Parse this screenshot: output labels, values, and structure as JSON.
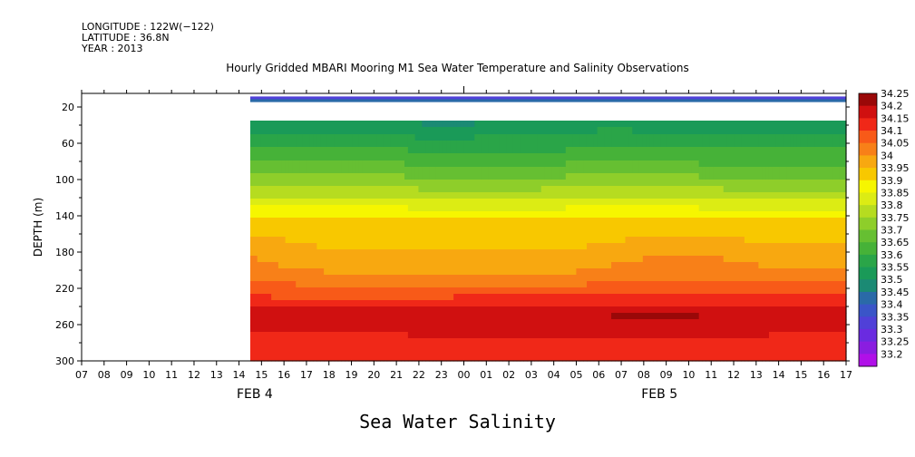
{
  "meta": {
    "longitude": "LONGITUDE : 122W(−122)",
    "latitude": "LATITUDE : 36.8N",
    "year": "YEAR : 2013"
  },
  "chart_data": {
    "type": "heatmap",
    "title": "Hourly Gridded MBARI Mooring M1 Sea Water Temperature and Salinity Observations",
    "bottom_title": "Sea Water Salinity",
    "ylabel": "DEPTH (m)",
    "ylim": [
      300,
      5
    ],
    "y_ticks": [
      20,
      60,
      100,
      140,
      180,
      220,
      260,
      300
    ],
    "x_ticks": [
      "07",
      "08",
      "09",
      "10",
      "11",
      "12",
      "13",
      "14",
      "15",
      "16",
      "17",
      "18",
      "19",
      "20",
      "21",
      "22",
      "23",
      "00",
      "01",
      "02",
      "03",
      "04",
      "05",
      "06",
      "07",
      "08",
      "09",
      "10",
      "11",
      "12",
      "13",
      "14",
      "15",
      "16",
      "17"
    ],
    "x_range_hours": [
      0,
      34
    ],
    "date_labels": [
      {
        "text": "FEB  4",
        "hour": 7.5
      },
      {
        "text": "FEB  5",
        "hour": 25.5
      }
    ],
    "data_start_hour": 7.5,
    "levels": [
      33.2,
      33.25,
      33.3,
      33.35,
      33.4,
      33.45,
      33.5,
      33.55,
      33.6,
      33.65,
      33.7,
      33.75,
      33.8,
      33.85,
      33.9,
      33.95,
      34,
      34.05,
      34.1,
      34.15,
      34.2,
      34.25
    ],
    "level_labels": [
      "33.2",
      "33.25",
      "33.3",
      "33.35",
      "33.4",
      "33.45",
      "33.5",
      "33.55",
      "33.6",
      "33.65",
      "33.7",
      "33.75",
      "33.8",
      "33.85",
      "33.9",
      "33.95",
      "34",
      "34.05",
      "34.1",
      "34.15",
      "34.2",
      "34.25"
    ],
    "colors": [
      "#b010e8",
      "#8a1de0",
      "#6a2be0",
      "#5040d8",
      "#3a55c8",
      "#2a6aa8",
      "#1b8a74",
      "#1a9a58",
      "#2aa548",
      "#46b238",
      "#66bf32",
      "#8ece2a",
      "#b6dc20",
      "#dcec14",
      "#f6f600",
      "#f8c800",
      "#f8a810",
      "#f88018",
      "#f85a18",
      "#f02818",
      "#d01010",
      "#9a0808"
    ],
    "sensors": [
      {
        "depth": 10,
        "value": 33.36
      },
      {
        "depth": 13,
        "value": 33.46
      }
    ],
    "depths": [
      35,
      42,
      50,
      57,
      64,
      71,
      79,
      86,
      93,
      100,
      107,
      114,
      121,
      128,
      135,
      142,
      149,
      156,
      163,
      170,
      177,
      184,
      191,
      198,
      205,
      212,
      219,
      226,
      233,
      240,
      247,
      254,
      261,
      268,
      275,
      282,
      289,
      296,
      300
    ],
    "profile": {
      "hours": [
        7.5,
        9.5,
        11.5,
        13.5,
        15.5,
        17.5,
        19.5,
        21.5,
        23.5,
        25.5,
        27.5,
        29.5,
        31.5,
        33.5,
        34
      ],
      "values": [
        [
          33.56,
          33.55,
          33.56,
          33.56,
          33.54,
          33.54,
          33.54,
          33.55,
          33.57,
          33.56,
          33.56,
          33.55,
          33.55,
          33.56,
          33.56
        ],
        [
          33.58,
          33.57,
          33.58,
          33.58,
          33.55,
          33.56,
          33.56,
          33.57,
          33.59,
          33.58,
          33.58,
          33.57,
          33.57,
          33.58,
          33.58
        ],
        [
          33.61,
          33.6,
          33.6,
          33.61,
          33.58,
          33.59,
          33.59,
          33.6,
          33.62,
          33.61,
          33.61,
          33.6,
          33.6,
          33.61,
          33.61
        ],
        [
          33.63,
          33.62,
          33.62,
          33.63,
          33.6,
          33.61,
          33.61,
          33.62,
          33.64,
          33.63,
          33.63,
          33.62,
          33.62,
          33.63,
          33.63
        ],
        [
          33.65,
          33.64,
          33.64,
          33.65,
          33.63,
          33.64,
          33.63,
          33.64,
          33.66,
          33.65,
          33.65,
          33.64,
          33.64,
          33.65,
          33.65
        ],
        [
          33.67,
          33.66,
          33.67,
          33.67,
          33.65,
          33.66,
          33.66,
          33.66,
          33.68,
          33.67,
          33.67,
          33.66,
          33.66,
          33.66,
          33.66
        ],
        [
          33.7,
          33.69,
          33.69,
          33.7,
          33.67,
          33.68,
          33.68,
          33.69,
          33.7,
          33.69,
          33.69,
          33.68,
          33.68,
          33.68,
          33.68
        ],
        [
          33.72,
          33.71,
          33.72,
          33.72,
          33.7,
          33.71,
          33.7,
          33.71,
          33.72,
          33.72,
          33.71,
          33.71,
          33.71,
          33.7,
          33.7
        ],
        [
          33.75,
          33.74,
          33.74,
          33.75,
          33.72,
          33.73,
          33.73,
          33.74,
          33.75,
          33.74,
          33.74,
          33.73,
          33.73,
          33.72,
          33.72
        ],
        [
          33.77,
          33.76,
          33.77,
          33.77,
          33.75,
          33.76,
          33.76,
          33.76,
          33.77,
          33.77,
          33.76,
          33.76,
          33.76,
          33.75,
          33.75
        ],
        [
          33.8,
          33.79,
          33.79,
          33.8,
          33.78,
          33.79,
          33.78,
          33.79,
          33.8,
          33.79,
          33.79,
          33.78,
          33.78,
          33.78,
          33.78
        ],
        [
          33.83,
          33.82,
          33.82,
          33.83,
          33.81,
          33.81,
          33.81,
          33.82,
          33.83,
          33.82,
          33.82,
          33.81,
          33.81,
          33.81,
          33.81
        ],
        [
          33.86,
          33.85,
          33.85,
          33.86,
          33.84,
          33.84,
          33.84,
          33.85,
          33.86,
          33.85,
          33.85,
          33.84,
          33.84,
          33.84,
          33.84
        ],
        [
          33.89,
          33.88,
          33.88,
          33.89,
          33.87,
          33.88,
          33.87,
          33.88,
          33.89,
          33.88,
          33.88,
          33.87,
          33.87,
          33.87,
          33.87
        ],
        [
          33.93,
          33.92,
          33.92,
          33.93,
          33.91,
          33.92,
          33.91,
          33.92,
          33.93,
          33.92,
          33.92,
          33.91,
          33.91,
          33.91,
          33.91
        ],
        [
          33.97,
          33.96,
          33.97,
          33.97,
          33.96,
          33.96,
          33.96,
          33.97,
          33.97,
          33.97,
          33.97,
          33.96,
          33.96,
          33.96,
          33.96
        ],
        [
          33.98,
          33.98,
          33.98,
          33.98,
          33.98,
          33.98,
          33.98,
          33.98,
          33.98,
          33.98,
          33.98,
          33.98,
          33.98,
          33.98,
          33.98
        ],
        [
          33.99,
          33.98,
          33.98,
          33.98,
          33.98,
          33.98,
          33.98,
          33.98,
          33.98,
          33.98,
          33.98,
          33.98,
          33.98,
          33.98,
          33.98
        ],
        [
          34.01,
          33.99,
          33.99,
          33.99,
          33.99,
          33.99,
          33.99,
          33.99,
          33.99,
          34.0,
          34.01,
          33.99,
          33.99,
          33.99,
          33.99
        ],
        [
          34.03,
          34.0,
          33.99,
          33.99,
          33.99,
          33.99,
          33.99,
          33.99,
          34.0,
          34.02,
          34.03,
          34.01,
          34.0,
          34.0,
          34.0
        ],
        [
          34.04,
          34.01,
          34.0,
          34.0,
          34.0,
          34.0,
          34.0,
          34.0,
          34.01,
          34.04,
          34.04,
          34.03,
          34.01,
          34.01,
          34.01
        ],
        [
          34.05,
          34.02,
          34.0,
          34.0,
          34.0,
          34.0,
          34.0,
          34.0,
          34.03,
          34.05,
          34.05,
          34.04,
          34.02,
          34.02,
          34.02
        ],
        [
          34.06,
          34.03,
          34.01,
          34.01,
          34.01,
          34.01,
          34.01,
          34.01,
          34.04,
          34.06,
          34.06,
          34.05,
          34.03,
          34.03,
          34.03
        ],
        [
          34.07,
          34.05,
          34.03,
          34.02,
          34.02,
          34.02,
          34.02,
          34.03,
          34.06,
          34.07,
          34.07,
          34.06,
          34.05,
          34.05,
          34.05
        ],
        [
          34.08,
          34.07,
          34.06,
          34.06,
          34.06,
          34.06,
          34.06,
          34.06,
          34.07,
          34.08,
          34.08,
          34.07,
          34.07,
          34.07,
          34.07
        ],
        [
          34.1,
          34.09,
          34.08,
          34.08,
          34.08,
          34.08,
          34.08,
          34.08,
          34.09,
          34.1,
          34.1,
          34.09,
          34.09,
          34.09,
          34.09
        ],
        [
          34.12,
          34.11,
          34.11,
          34.11,
          34.11,
          34.11,
          34.11,
          34.11,
          34.12,
          34.12,
          34.12,
          34.12,
          34.11,
          34.11,
          34.11
        ],
        [
          34.14,
          34.13,
          34.13,
          34.13,
          34.13,
          34.14,
          34.14,
          34.14,
          34.15,
          34.15,
          34.15,
          34.15,
          34.14,
          34.14,
          34.14
        ],
        [
          34.17,
          34.16,
          34.16,
          34.16,
          34.16,
          34.17,
          34.17,
          34.18,
          34.18,
          34.18,
          34.18,
          34.18,
          34.17,
          34.17,
          34.17
        ],
        [
          34.2,
          34.19,
          34.19,
          34.19,
          34.19,
          34.2,
          34.2,
          34.21,
          34.21,
          34.21,
          34.21,
          34.21,
          34.2,
          34.2,
          34.2
        ],
        [
          34.23,
          34.21,
          34.21,
          34.22,
          34.22,
          34.22,
          34.22,
          34.23,
          34.24,
          34.24,
          34.24,
          34.23,
          34.22,
          34.23,
          34.22
        ],
        [
          34.26,
          34.22,
          34.21,
          34.24,
          34.23,
          34.22,
          34.22,
          34.24,
          34.26,
          34.26,
          34.26,
          34.24,
          34.22,
          34.25,
          34.22
        ],
        [
          34.23,
          34.21,
          34.21,
          34.22,
          34.22,
          34.22,
          34.21,
          34.22,
          34.23,
          34.23,
          34.23,
          34.22,
          34.21,
          34.22,
          34.21
        ],
        [
          34.21,
          34.2,
          34.2,
          34.2,
          34.21,
          34.21,
          34.21,
          34.21,
          34.21,
          34.21,
          34.21,
          34.21,
          34.2,
          34.2,
          34.2
        ],
        [
          34.19,
          34.18,
          34.18,
          34.19,
          34.2,
          34.2,
          34.2,
          34.2,
          34.2,
          34.2,
          34.2,
          34.2,
          34.19,
          34.19,
          34.19
        ],
        [
          34.17,
          34.17,
          34.17,
          34.17,
          34.18,
          34.19,
          34.19,
          34.19,
          34.18,
          34.18,
          34.18,
          34.18,
          34.17,
          34.17,
          34.17
        ],
        [
          34.16,
          34.16,
          34.16,
          34.16,
          34.17,
          34.17,
          34.18,
          34.18,
          34.17,
          34.16,
          34.16,
          34.16,
          34.16,
          34.15,
          34.15
        ],
        [
          34.15,
          34.15,
          34.15,
          34.15,
          34.16,
          34.16,
          34.17,
          34.17,
          34.16,
          34.15,
          34.15,
          34.15,
          34.15,
          34.15,
          34.15
        ],
        [
          34.15,
          34.15,
          34.15,
          34.15,
          34.15,
          34.15,
          34.16,
          34.16,
          34.15,
          34.15,
          34.15,
          34.15,
          34.15,
          34.15,
          34.15
        ]
      ]
    }
  }
}
